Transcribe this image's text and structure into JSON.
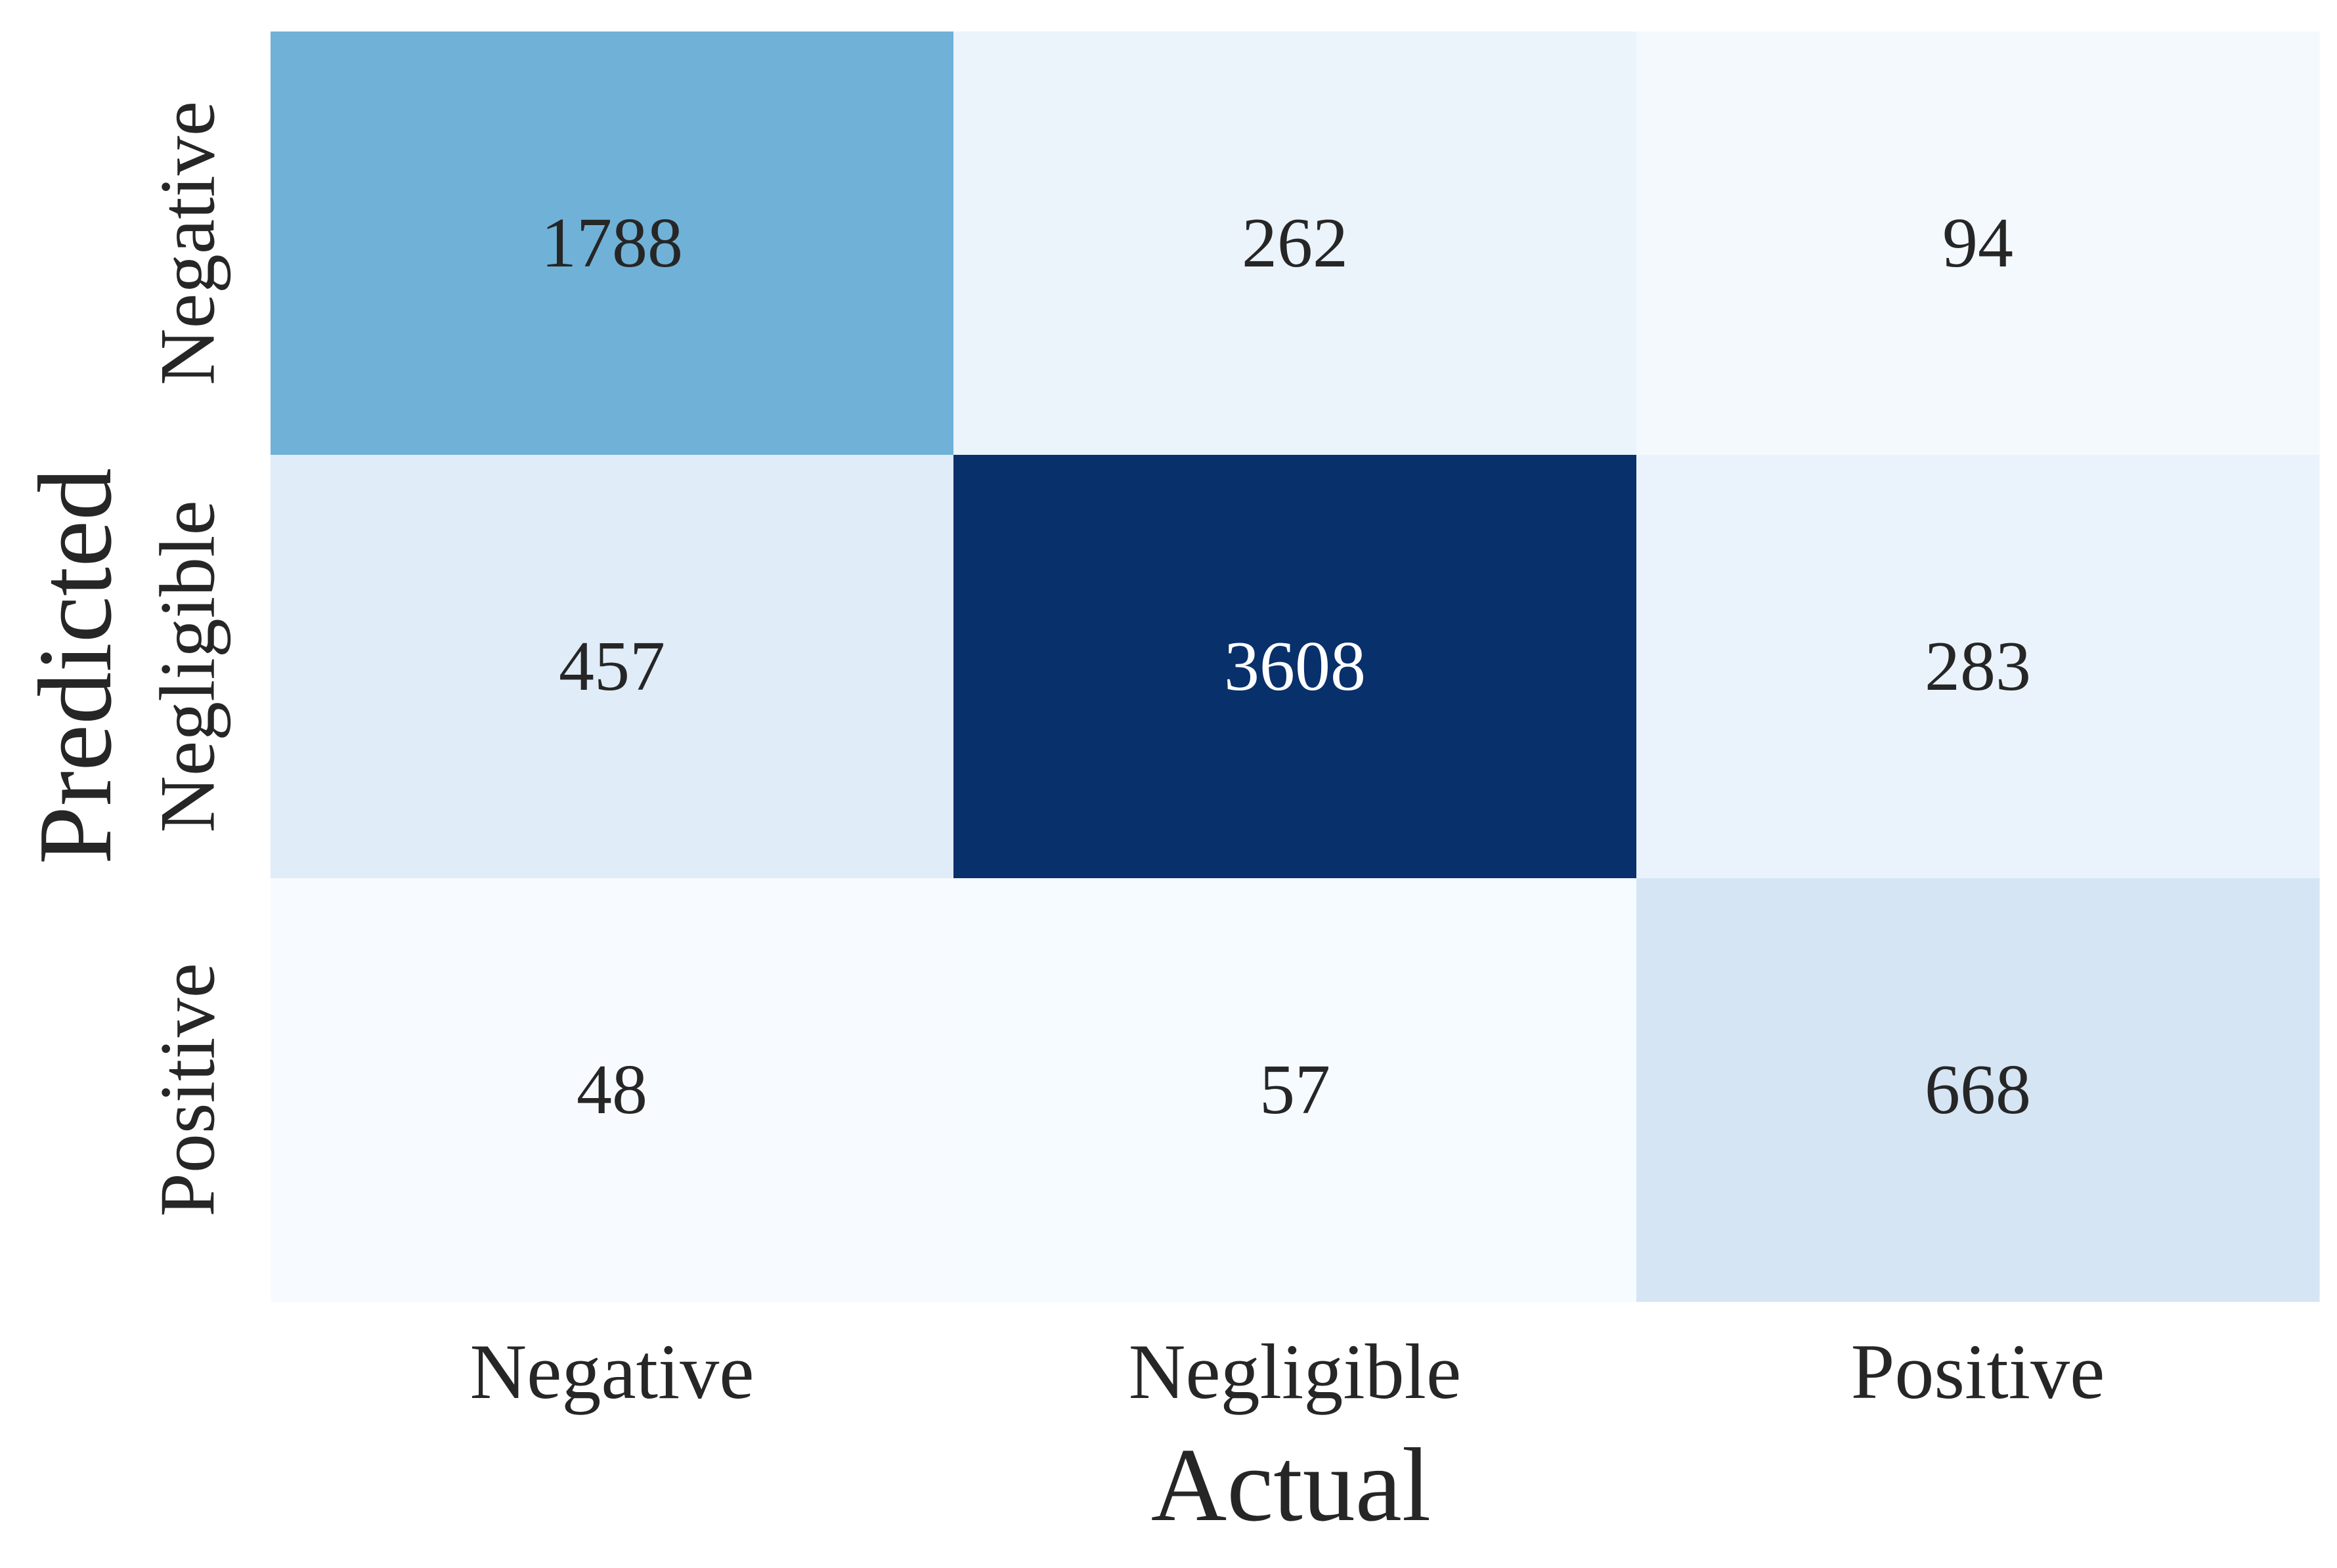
{
  "chart_data": {
    "type": "heatmap",
    "xlabel": "Actual",
    "ylabel": "Predicted",
    "x_categories": [
      "Negative",
      "Negligible",
      "Positive"
    ],
    "y_categories": [
      "Negative",
      "Negligible",
      "Positive"
    ],
    "values": [
      [
        1788,
        262,
        94
      ],
      [
        457,
        3608,
        283
      ],
      [
        48,
        57,
        668
      ]
    ],
    "colormap": "Blues",
    "colors": {
      "low": "#f7fbff",
      "high": "#08306b",
      "text_dark": "#262626",
      "text_light": "#ffffff"
    },
    "colorbar": false,
    "grid": false
  }
}
